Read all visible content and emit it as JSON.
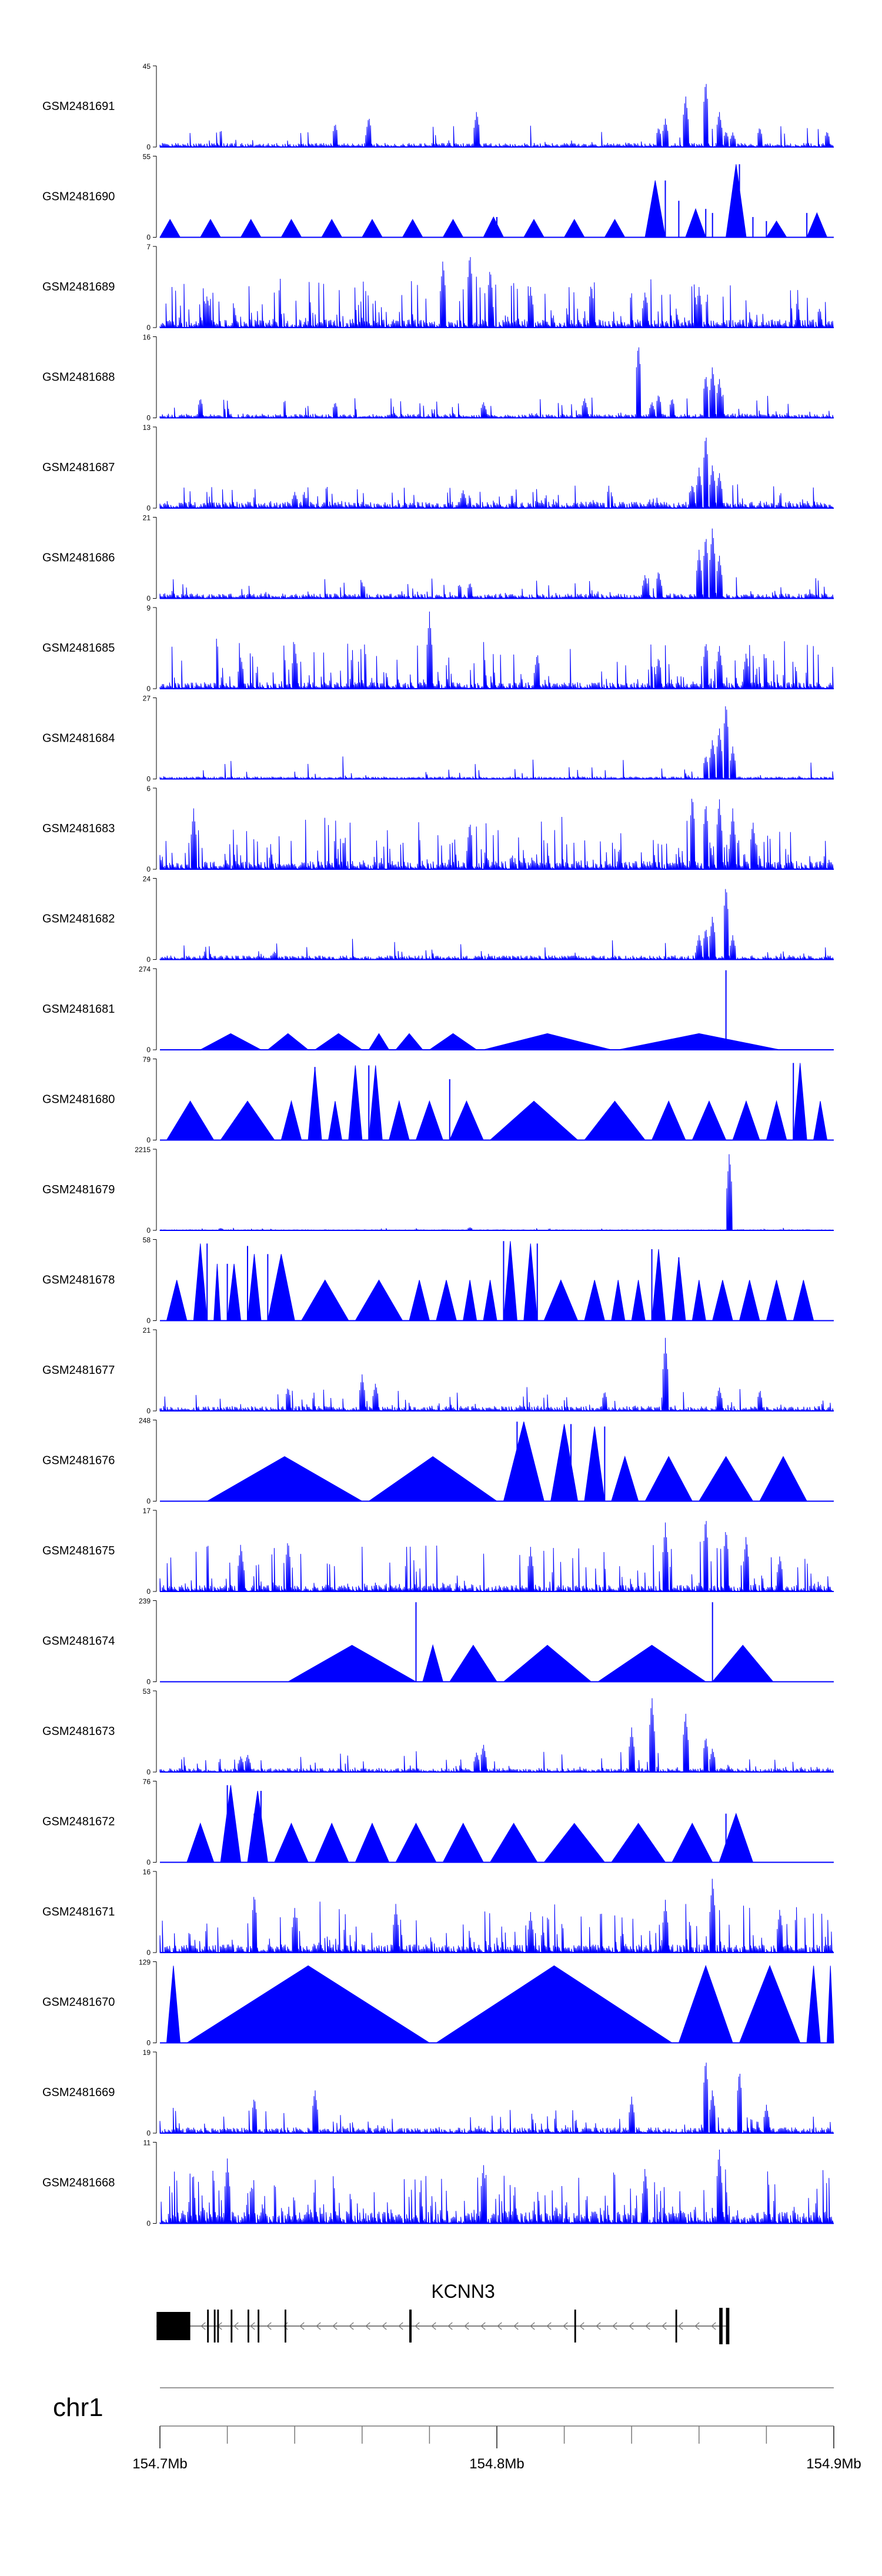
{
  "chart_data": {
    "type": "genome-browser-coverage",
    "fill_color": "#0000ff",
    "tracks": [
      {
        "sample": "GSM2481691",
        "ymax": "45",
        "ymin": "0",
        "style": "spiky",
        "seed": 11,
        "density": 0.1,
        "baseline": 0.05,
        "peaks": [
          [
            0.26,
            0.3
          ],
          [
            0.31,
            0.38
          ],
          [
            0.47,
            0.45
          ],
          [
            0.74,
            0.25
          ],
          [
            0.75,
            0.35
          ],
          [
            0.78,
            0.65
          ],
          [
            0.81,
            0.85
          ],
          [
            0.83,
            0.45
          ],
          [
            0.84,
            0.2
          ],
          [
            0.85,
            0.18
          ],
          [
            0.89,
            0.25
          ],
          [
            0.99,
            0.2
          ]
        ]
      },
      {
        "sample": "GSM2481690",
        "ymax": "55",
        "ymin": "0",
        "style": "triangles",
        "seed": 12,
        "density": 0.2,
        "baseline": 0.22,
        "peaks": [
          [
            0.5,
            0.25
          ],
          [
            0.75,
            0.7
          ],
          [
            0.77,
            0.45
          ],
          [
            0.81,
            0.35
          ],
          [
            0.82,
            0.3
          ],
          [
            0.86,
            0.9
          ],
          [
            0.88,
            0.25
          ],
          [
            0.9,
            0.2
          ],
          [
            0.96,
            0.3
          ]
        ]
      },
      {
        "sample": "GSM2481689",
        "ymax": "7",
        "ymin": "0",
        "style": "dense",
        "seed": 13,
        "density": 0.35,
        "baseline": 0.1,
        "peaks": [
          [
            0.07,
            0.4
          ],
          [
            0.42,
            0.85
          ],
          [
            0.46,
            0.95
          ],
          [
            0.49,
            0.75
          ],
          [
            0.55,
            0.5
          ],
          [
            0.64,
            0.55
          ],
          [
            0.72,
            0.45
          ],
          [
            0.8,
            0.5
          ]
        ]
      },
      {
        "sample": "GSM2481688",
        "ymax": "16",
        "ymin": "0",
        "style": "spiky",
        "seed": 14,
        "density": 0.12,
        "baseline": 0.05,
        "peaks": [
          [
            0.06,
            0.25
          ],
          [
            0.26,
            0.2
          ],
          [
            0.48,
            0.2
          ],
          [
            0.63,
            0.25
          ],
          [
            0.71,
            0.95
          ],
          [
            0.73,
            0.2
          ],
          [
            0.74,
            0.3
          ],
          [
            0.76,
            0.25
          ],
          [
            0.81,
            0.55
          ],
          [
            0.82,
            0.65
          ],
          [
            0.83,
            0.5
          ]
        ]
      },
      {
        "sample": "GSM2481687",
        "ymax": "13",
        "ymin": "0",
        "style": "spiky",
        "seed": 15,
        "density": 0.22,
        "baseline": 0.08,
        "peaks": [
          [
            0.2,
            0.2
          ],
          [
            0.45,
            0.22
          ],
          [
            0.79,
            0.3
          ],
          [
            0.8,
            0.5
          ],
          [
            0.81,
            0.95
          ],
          [
            0.82,
            0.55
          ],
          [
            0.83,
            0.45
          ]
        ]
      },
      {
        "sample": "GSM2481686",
        "ymax": "21",
        "ymin": "0",
        "style": "spiky",
        "seed": 16,
        "density": 0.15,
        "baseline": 0.06,
        "peaks": [
          [
            0.46,
            0.2
          ],
          [
            0.72,
            0.3
          ],
          [
            0.74,
            0.35
          ],
          [
            0.8,
            0.6
          ],
          [
            0.81,
            0.8
          ],
          [
            0.82,
            0.9
          ],
          [
            0.83,
            0.55
          ]
        ]
      },
      {
        "sample": "GSM2481685",
        "ymax": "9",
        "ymin": "0",
        "style": "dense",
        "seed": 17,
        "density": 0.3,
        "baseline": 0.08,
        "peaks": [
          [
            0.12,
            0.4
          ],
          [
            0.2,
            0.55
          ],
          [
            0.4,
            0.95
          ],
          [
            0.56,
            0.45
          ],
          [
            0.74,
            0.4
          ],
          [
            0.81,
            0.6
          ],
          [
            0.83,
            0.55
          ],
          [
            0.87,
            0.45
          ]
        ]
      },
      {
        "sample": "GSM2481684",
        "ymax": "27",
        "ymin": "0",
        "style": "spiky",
        "seed": 18,
        "density": 0.1,
        "baseline": 0.03,
        "peaks": [
          [
            0.81,
            0.3
          ],
          [
            0.82,
            0.5
          ],
          [
            0.83,
            0.65
          ],
          [
            0.84,
            0.98
          ],
          [
            0.85,
            0.4
          ]
        ]
      },
      {
        "sample": "GSM2481683",
        "ymax": "6",
        "ymin": "0",
        "style": "dense",
        "seed": 19,
        "density": 0.4,
        "baseline": 0.1,
        "peaks": [
          [
            0.05,
            0.75
          ],
          [
            0.46,
            0.6
          ],
          [
            0.79,
            0.95
          ],
          [
            0.81,
            0.85
          ],
          [
            0.83,
            0.9
          ],
          [
            0.85,
            0.75
          ],
          [
            0.88,
            0.6
          ]
        ]
      },
      {
        "sample": "GSM2481682",
        "ymax": "24",
        "ymin": "0",
        "style": "spiky",
        "seed": 20,
        "density": 0.1,
        "baseline": 0.05,
        "peaks": [
          [
            0.17,
            0.1
          ],
          [
            0.8,
            0.3
          ],
          [
            0.81,
            0.4
          ],
          [
            0.82,
            0.55
          ],
          [
            0.84,
            0.95
          ],
          [
            0.85,
            0.3
          ]
        ]
      },
      {
        "sample": "GSM2481681",
        "ymax": "274",
        "ymin": "0",
        "style": "triangles",
        "seed": 21,
        "density": 0.0,
        "baseline": 0.2,
        "peaks": [
          [
            0.84,
            0.98
          ]
        ]
      },
      {
        "sample": "GSM2481680",
        "ymax": "79",
        "ymin": "0",
        "style": "triangles",
        "seed": 22,
        "density": 0.0,
        "baseline": 0.48,
        "peaks": [
          [
            0.23,
            0.9
          ],
          [
            0.31,
            0.92
          ],
          [
            0.43,
            0.75
          ],
          [
            0.94,
            0.95
          ]
        ]
      },
      {
        "sample": "GSM2481679",
        "ymax": "2215",
        "ymin": "0",
        "style": "flat",
        "seed": 23,
        "density": 0.0,
        "baseline": 0.02,
        "peaks": [
          [
            0.845,
            0.98
          ],
          [
            0.46,
            0.04
          ],
          [
            0.09,
            0.03
          ]
        ]
      },
      {
        "sample": "GSM2481678",
        "ymax": "58",
        "ymin": "0",
        "style": "triangles",
        "seed": 24,
        "density": 0.0,
        "baseline": 0.5,
        "peaks": [
          [
            0.07,
            0.95
          ],
          [
            0.1,
            0.7
          ],
          [
            0.13,
            0.92
          ],
          [
            0.16,
            0.82
          ],
          [
            0.51,
            0.98
          ],
          [
            0.56,
            0.95
          ],
          [
            0.73,
            0.88
          ],
          [
            0.77,
            0.78
          ]
        ]
      },
      {
        "sample": "GSM2481677",
        "ymax": "21",
        "ymin": "0",
        "style": "spiky",
        "seed": 25,
        "density": 0.15,
        "baseline": 0.06,
        "peaks": [
          [
            0.19,
            0.3
          ],
          [
            0.3,
            0.45
          ],
          [
            0.32,
            0.35
          ],
          [
            0.66,
            0.25
          ],
          [
            0.75,
            0.9
          ],
          [
            0.83,
            0.3
          ],
          [
            0.89,
            0.25
          ]
        ]
      },
      {
        "sample": "GSM2481676",
        "ymax": "248",
        "ymin": "0",
        "style": "triangles",
        "seed": 26,
        "density": 0.0,
        "baseline": 0.55,
        "peaks": [
          [
            0.53,
            0.98
          ],
          [
            0.61,
            0.95
          ],
          [
            0.66,
            0.92
          ]
        ]
      },
      {
        "sample": "GSM2481675",
        "ymax": "17",
        "ymin": "0",
        "style": "dense",
        "seed": 27,
        "density": 0.28,
        "baseline": 0.08,
        "peaks": [
          [
            0.12,
            0.6
          ],
          [
            0.19,
            0.65
          ],
          [
            0.55,
            0.55
          ],
          [
            0.75,
            0.85
          ],
          [
            0.81,
            0.95
          ],
          [
            0.84,
            0.8
          ],
          [
            0.87,
            0.7
          ],
          [
            0.92,
            0.45
          ]
        ]
      },
      {
        "sample": "GSM2481674",
        "ymax": "239",
        "ymin": "0",
        "style": "triangles",
        "seed": 28,
        "density": 0.0,
        "baseline": 0.45,
        "peaks": [
          [
            0.38,
            0.98
          ],
          [
            0.82,
            0.98
          ]
        ]
      },
      {
        "sample": "GSM2481673",
        "ymax": "53",
        "ymin": "0",
        "style": "spiky",
        "seed": 29,
        "density": 0.12,
        "baseline": 0.05,
        "peaks": [
          [
            0.12,
            0.2
          ],
          [
            0.13,
            0.22
          ],
          [
            0.47,
            0.25
          ],
          [
            0.48,
            0.35
          ],
          [
            0.7,
            0.55
          ],
          [
            0.73,
            0.95
          ],
          [
            0.78,
            0.75
          ],
          [
            0.81,
            0.45
          ],
          [
            0.82,
            0.3
          ]
        ]
      },
      {
        "sample": "GSM2481672",
        "ymax": "76",
        "ymin": "0",
        "style": "triangles",
        "seed": 30,
        "density": 0.0,
        "baseline": 0.48,
        "peaks": [
          [
            0.1,
            0.95
          ],
          [
            0.14,
            0.6
          ],
          [
            0.15,
            0.88
          ],
          [
            0.84,
            0.6
          ]
        ]
      },
      {
        "sample": "GSM2481671",
        "ymax": "16",
        "ymin": "0",
        "style": "dense",
        "seed": 31,
        "density": 0.3,
        "baseline": 0.1,
        "peaks": [
          [
            0.14,
            0.75
          ],
          [
            0.2,
            0.55
          ],
          [
            0.35,
            0.6
          ],
          [
            0.55,
            0.5
          ],
          [
            0.75,
            0.65
          ],
          [
            0.82,
            0.95
          ],
          [
            0.92,
            0.55
          ]
        ]
      },
      {
        "sample": "GSM2481670",
        "ymax": "129",
        "ymin": "0",
        "style": "triangles",
        "seed": 32,
        "density": 0.0,
        "baseline": 0.95,
        "peaks": []
      },
      {
        "sample": "GSM2481669",
        "ymax": "19",
        "ymin": "0",
        "style": "spiky",
        "seed": 33,
        "density": 0.18,
        "baseline": 0.07,
        "peaks": [
          [
            0.14,
            0.45
          ],
          [
            0.23,
            0.55
          ],
          [
            0.7,
            0.45
          ],
          [
            0.81,
            0.95
          ],
          [
            0.82,
            0.55
          ],
          [
            0.86,
            0.8
          ],
          [
            0.9,
            0.35
          ]
        ]
      },
      {
        "sample": "GSM2481668",
        "ymax": "11",
        "ymin": "0",
        "style": "dense",
        "seed": 34,
        "density": 0.45,
        "baseline": 0.15,
        "peaks": [
          [
            0.1,
            0.8
          ],
          [
            0.48,
            0.75
          ],
          [
            0.72,
            0.7
          ],
          [
            0.83,
            0.95
          ]
        ]
      }
    ],
    "triangle_tracks": {
      "GSM2481690": [
        0.0,
        0.03,
        0.06,
        0.09,
        0.12,
        0.15,
        0.18,
        0.21,
        0.24,
        0.27,
        0.3,
        0.33,
        0.36,
        0.39,
        0.42,
        0.45,
        0.48,
        0.51,
        0.54,
        0.57,
        0.6,
        0.63,
        0.66,
        0.69,
        0.72,
        0.75,
        0.78,
        0.81,
        0.84,
        0.87,
        0.9,
        0.93,
        0.96,
        0.99
      ],
      "GSM2481681": [
        0.06,
        0.15,
        0.16,
        0.22,
        0.23,
        0.3,
        0.31,
        0.34,
        0.35,
        0.39,
        0.4,
        0.47,
        0.48,
        0.67,
        0.68,
        0.92
      ],
      "GSM2481680": [
        0.01,
        0.08,
        0.09,
        0.17,
        0.18,
        0.21,
        0.22,
        0.24,
        0.25,
        0.27,
        0.28,
        0.3,
        0.31,
        0.33,
        0.34,
        0.37,
        0.38,
        0.42,
        0.43,
        0.48,
        0.49,
        0.62,
        0.63,
        0.72,
        0.73,
        0.78,
        0.79,
        0.84,
        0.85,
        0.89,
        0.9,
        0.93,
        0.94,
        0.96,
        0.97,
        0.99
      ],
      "GSM2481678": [
        0.01,
        0.04,
        0.05,
        0.07,
        0.08,
        0.09,
        0.1,
        0.12,
        0.13,
        0.15,
        0.16,
        0.2,
        0.21,
        0.28,
        0.29,
        0.36,
        0.37,
        0.4,
        0.41,
        0.44,
        0.45,
        0.47,
        0.48,
        0.5,
        0.51,
        0.53,
        0.54,
        0.56,
        0.57,
        0.62,
        0.63,
        0.66,
        0.67,
        0.69,
        0.7,
        0.72,
        0.73,
        0.75,
        0.76,
        0.78,
        0.79,
        0.81,
        0.82,
        0.85,
        0.86,
        0.89,
        0.9,
        0.93,
        0.94,
        0.97
      ],
      "GSM2481676": [
        0.07,
        0.3,
        0.31,
        0.5,
        0.51,
        0.57,
        0.58,
        0.62,
        0.63,
        0.66,
        0.67,
        0.71,
        0.72,
        0.79,
        0.8,
        0.88,
        0.89,
        0.96
      ],
      "GSM2481674": [
        0.19,
        0.38,
        0.39,
        0.42,
        0.43,
        0.5,
        0.51,
        0.64,
        0.65,
        0.81,
        0.82,
        0.91
      ],
      "GSM2481672": [
        0.04,
        0.08,
        0.09,
        0.12,
        0.13,
        0.16,
        0.17,
        0.22,
        0.23,
        0.28,
        0.29,
        0.34,
        0.35,
        0.41,
        0.42,
        0.48,
        0.49,
        0.56,
        0.57,
        0.66,
        0.67,
        0.75,
        0.76,
        0.82,
        0.83,
        0.88
      ],
      "GSM2481670": [
        0.01,
        0.03,
        0.04,
        0.4,
        0.41,
        0.76,
        0.77,
        0.85,
        0.86,
        0.95,
        0.96,
        0.98,
        0.99,
        1.0
      ]
    },
    "gene": {
      "name": "KCNN3",
      "strand": "-",
      "start_mb": 154.699,
      "end_mb": 154.869,
      "exons_mb": [
        [
          154.699,
          154.709
        ],
        [
          154.714,
          154.7145
        ],
        [
          154.716,
          154.7165
        ],
        [
          154.717,
          154.7175
        ],
        [
          154.721,
          154.7215
        ],
        [
          154.726,
          154.7265
        ],
        [
          154.729,
          154.7295
        ],
        [
          154.737,
          154.7375
        ],
        [
          154.774,
          154.7747
        ],
        [
          154.823,
          154.8235
        ],
        [
          154.853,
          154.8535
        ],
        [
          154.866,
          154.867
        ],
        [
          154.868,
          154.869
        ]
      ]
    },
    "chromosome": "chr1",
    "x_axis": {
      "start_mb": 154.7,
      "end_mb": 154.9,
      "tick_labels": [
        {
          "pos": 154.7,
          "label": "154.7Mb"
        },
        {
          "pos": 154.8,
          "label": "154.8Mb"
        },
        {
          "pos": 154.9,
          "label": "154.9Mb"
        }
      ],
      "minor_tick_step_mb": 0.02
    }
  }
}
